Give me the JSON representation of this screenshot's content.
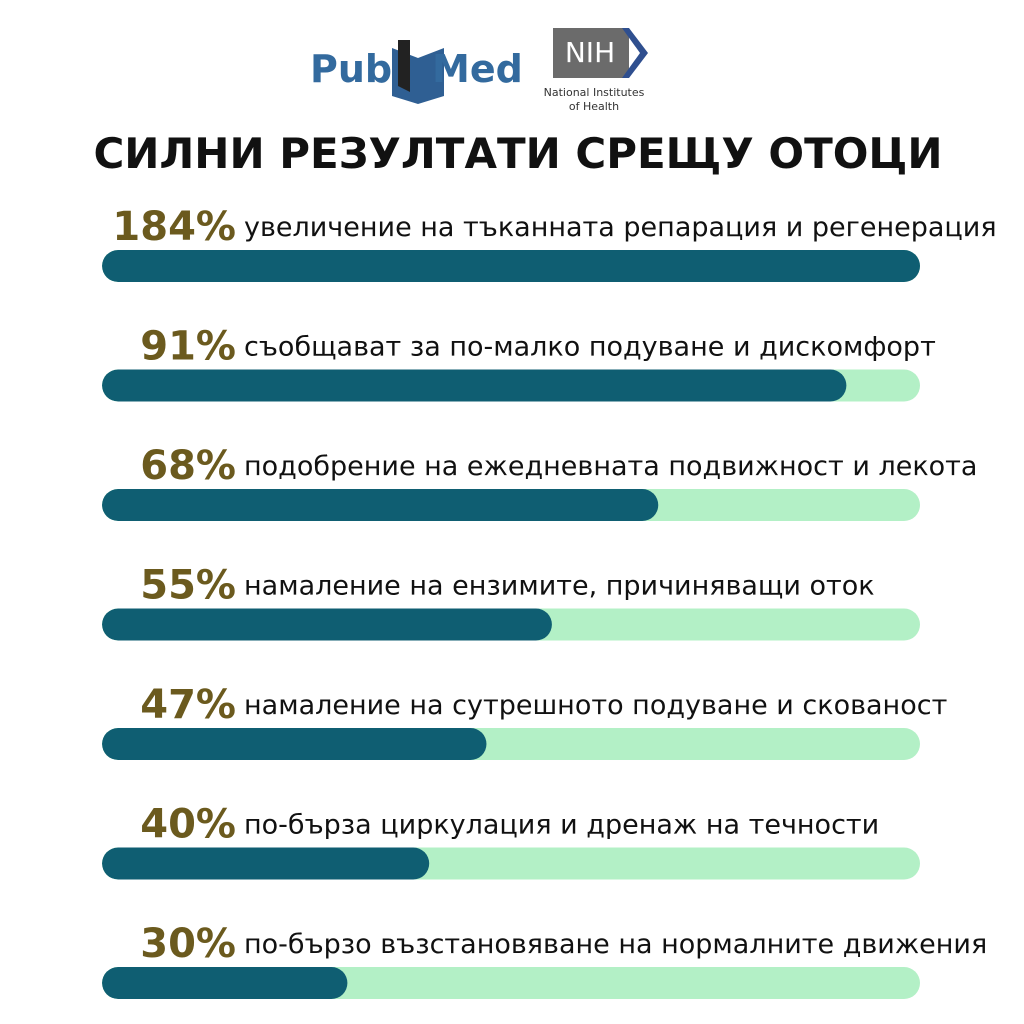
{
  "logos": {
    "pubmed_left": "Pub",
    "pubmed_right": "Med",
    "nih": "NIH",
    "nih_line1": "National Institutes",
    "nih_line2": "of Health"
  },
  "chart_data": {
    "type": "bar",
    "orientation": "horizontal",
    "title": "СИЛНИ РЕЗУЛТАТИ СРЕЩУ ОТОЦИ",
    "categories": [
      "увеличение на тъканната репарация и регенерация",
      "съобщават за по-малко подуване и дискомфорт",
      "подобрение на ежедневната подвижност и лекота",
      "намаление на ензимите, причиняващи оток",
      "намаление на сутрешното подуване и скованост",
      "по-бърза циркулация и дренаж на течности",
      "по-бързо възстановяване на нормалните движения"
    ],
    "values": [
      184,
      91,
      68,
      55,
      47,
      40,
      30
    ],
    "value_labels": [
      "184%",
      "91%",
      "68%",
      "55%",
      "47%",
      "40%",
      "30%"
    ],
    "xlim": [
      0,
      100
    ],
    "color": "#0f5e72",
    "track_color": "#b3f0c6",
    "label_color": "#6b5a1e"
  }
}
